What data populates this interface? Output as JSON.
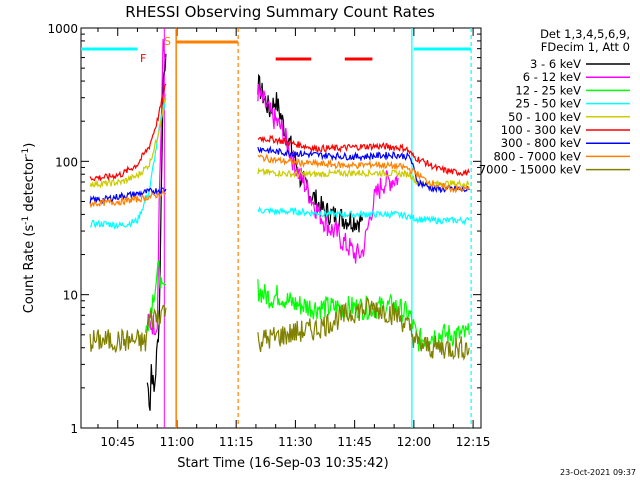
{
  "chart_data": {
    "type": "line",
    "title": "RHESSI Observing Summary Count Rates",
    "xlabel": "Start Time (16-Sep-03 10:35:42)",
    "ylabel": "Count Rate (s",
    "ylabel_sup": "-1",
    "ylabel_tail": " detector",
    "ylabel_end": ")",
    "yscale": "log",
    "ylim": [
      1,
      1000
    ],
    "xlim_minutes": [
      35.7,
      137.0
    ],
    "x_unit": "minutes after 10:00 UT",
    "x_ticks": [
      {
        "m": 45,
        "label": "10:45"
      },
      {
        "m": 60,
        "label": "11:00"
      },
      {
        "m": 75,
        "label": "11:15"
      },
      {
        "m": 90,
        "label": "11:30"
      },
      {
        "m": 105,
        "label": "11:45"
      },
      {
        "m": 120,
        "label": "12:00"
      },
      {
        "m": 135,
        "label": "12:15"
      }
    ],
    "y_ticks": [
      {
        "v": 1,
        "label": "1"
      },
      {
        "v": 10,
        "label": "10"
      },
      {
        "v": 100,
        "label": "100"
      },
      {
        "v": 1000,
        "label": "1000"
      }
    ],
    "legend_header": [
      "Det 1,3,4,5,6,9,",
      "FDecim 1, Att 0"
    ],
    "legend_position": "right",
    "series": [
      {
        "name": "3 - 6 keV",
        "color": "#000000",
        "x": [
          52.5,
          53.2,
          53.5,
          54.2,
          55.5,
          56.5,
          57.2,
          80.5,
          82,
          83.5,
          85,
          86.5,
          88,
          89.5,
          91,
          93,
          95,
          97,
          99,
          101,
          103,
          105,
          107
        ],
        "y": [
          2.2,
          1.5,
          3,
          1.8,
          6.5,
          400,
          640,
          380,
          300,
          240,
          290,
          210,
          150,
          115,
          78,
          62,
          52,
          43,
          40,
          38,
          37,
          36,
          36
        ]
      },
      {
        "name": "6 - 12 keV",
        "color": "#ff00ff",
        "x": [
          52.5,
          53.2,
          54,
          55,
          55.5,
          56.5,
          57.2,
          80.5,
          82,
          83.5,
          85,
          86.5,
          88,
          89.5,
          91,
          93,
          95,
          97,
          99,
          101,
          102,
          104,
          105,
          106,
          107,
          108,
          109,
          110,
          112,
          114,
          116
        ],
        "y": [
          6,
          6,
          6,
          6,
          50,
          700,
          590,
          330,
          280,
          230,
          200,
          175,
          135,
          100,
          80,
          62,
          46,
          37,
          31,
          28,
          25,
          22,
          20,
          20,
          21,
          28,
          40,
          52,
          68,
          72,
          75
        ]
      },
      {
        "name": "12 - 25 keV",
        "color": "#00ff00",
        "x": [
          38,
          52,
          53,
          55,
          55.6,
          56.2,
          57.2,
          80.5,
          82,
          84,
          86,
          88,
          90,
          95,
          100,
          105,
          110,
          115,
          119,
          121,
          125,
          130,
          134
        ],
        "y": [
          5,
          5,
          7,
          14,
          16,
          10,
          12,
          11,
          10,
          9.5,
          10,
          9,
          8.5,
          8,
          8,
          8,
          8,
          8.2,
          7,
          4.5,
          5,
          5,
          5
        ]
      },
      {
        "name": "25 - 50 keV",
        "color": "#00ffff",
        "x": [
          38,
          42,
          46,
          50,
          53,
          55,
          56,
          57.2,
          80.5,
          85,
          90,
          95,
          100,
          105,
          110,
          115,
          118,
          121,
          125,
          130,
          134
        ],
        "y": [
          34,
          34,
          33,
          36,
          60,
          140,
          210,
          300,
          43,
          42,
          42,
          41,
          40,
          40,
          40,
          40,
          39,
          37,
          36,
          36,
          36
        ]
      },
      {
        "name": "50 - 100 keV",
        "color": "#cccc00",
        "x": [
          38,
          42,
          46,
          50,
          53,
          55,
          57.2,
          80.5,
          85,
          90,
          95,
          100,
          105,
          110,
          115,
          119,
          121,
          125,
          130,
          134
        ],
        "y": [
          68,
          68,
          70,
          78,
          95,
          150,
          320,
          83,
          82,
          80,
          80,
          81,
          82,
          82,
          81,
          80,
          68,
          68,
          68,
          68
        ]
      },
      {
        "name": "100 - 300 keV",
        "color": "#ff0000",
        "x": [
          38,
          42,
          46,
          50,
          53,
          55,
          57.2,
          80.5,
          85,
          90,
          95,
          100,
          105,
          110,
          115,
          118,
          120,
          123,
          126,
          130,
          134
        ],
        "y": [
          75,
          76,
          80,
          95,
          130,
          200,
          380,
          150,
          145,
          135,
          125,
          125,
          128,
          130,
          128,
          125,
          108,
          98,
          88,
          83,
          82
        ]
      },
      {
        "name": "300 - 800 keV",
        "color": "#0000ff",
        "x": [
          38,
          42,
          46,
          50,
          54,
          57.2,
          80.5,
          85,
          90,
          95,
          100,
          105,
          110,
          115,
          119,
          121,
          125,
          130,
          134
        ],
        "y": [
          51,
          52,
          55,
          57,
          60,
          62,
          125,
          118,
          115,
          112,
          110,
          108,
          110,
          112,
          108,
          70,
          62,
          62,
          61
        ]
      },
      {
        "name": "800 - 7000 keV",
        "color": "#ff8000",
        "x": [
          38,
          42,
          46,
          50,
          54,
          57.2,
          80.5,
          85,
          90,
          95,
          100,
          105,
          110,
          115,
          118,
          121,
          123,
          126,
          130,
          134
        ],
        "y": [
          48,
          49,
          50,
          52,
          55,
          58,
          108,
          102,
          98,
          96,
          94,
          93,
          95,
          92,
          90,
          80,
          72,
          66,
          62,
          62
        ]
      },
      {
        "name": "7000 - 15000 keV",
        "color": "#808000",
        "x": [
          38,
          44,
          50,
          52,
          53,
          55,
          56,
          57.2,
          80.5,
          85,
          90,
          95,
          100,
          105,
          110,
          113,
          116,
          119,
          121,
          125,
          130,
          134
        ],
        "y": [
          4.5,
          4.5,
          4.5,
          4.3,
          6.5,
          7,
          7.5,
          8,
          4.5,
          4.8,
          5.2,
          5.5,
          6.5,
          7.5,
          8,
          7.5,
          7,
          5.5,
          4.2,
          4,
          4,
          4
        ]
      }
    ],
    "annotations": [
      {
        "text": "F",
        "color": "#ff0000"
      },
      {
        "text": "S",
        "color": "#ff8000"
      }
    ]
  },
  "timestamp": "23-Oct-2021 09:37"
}
